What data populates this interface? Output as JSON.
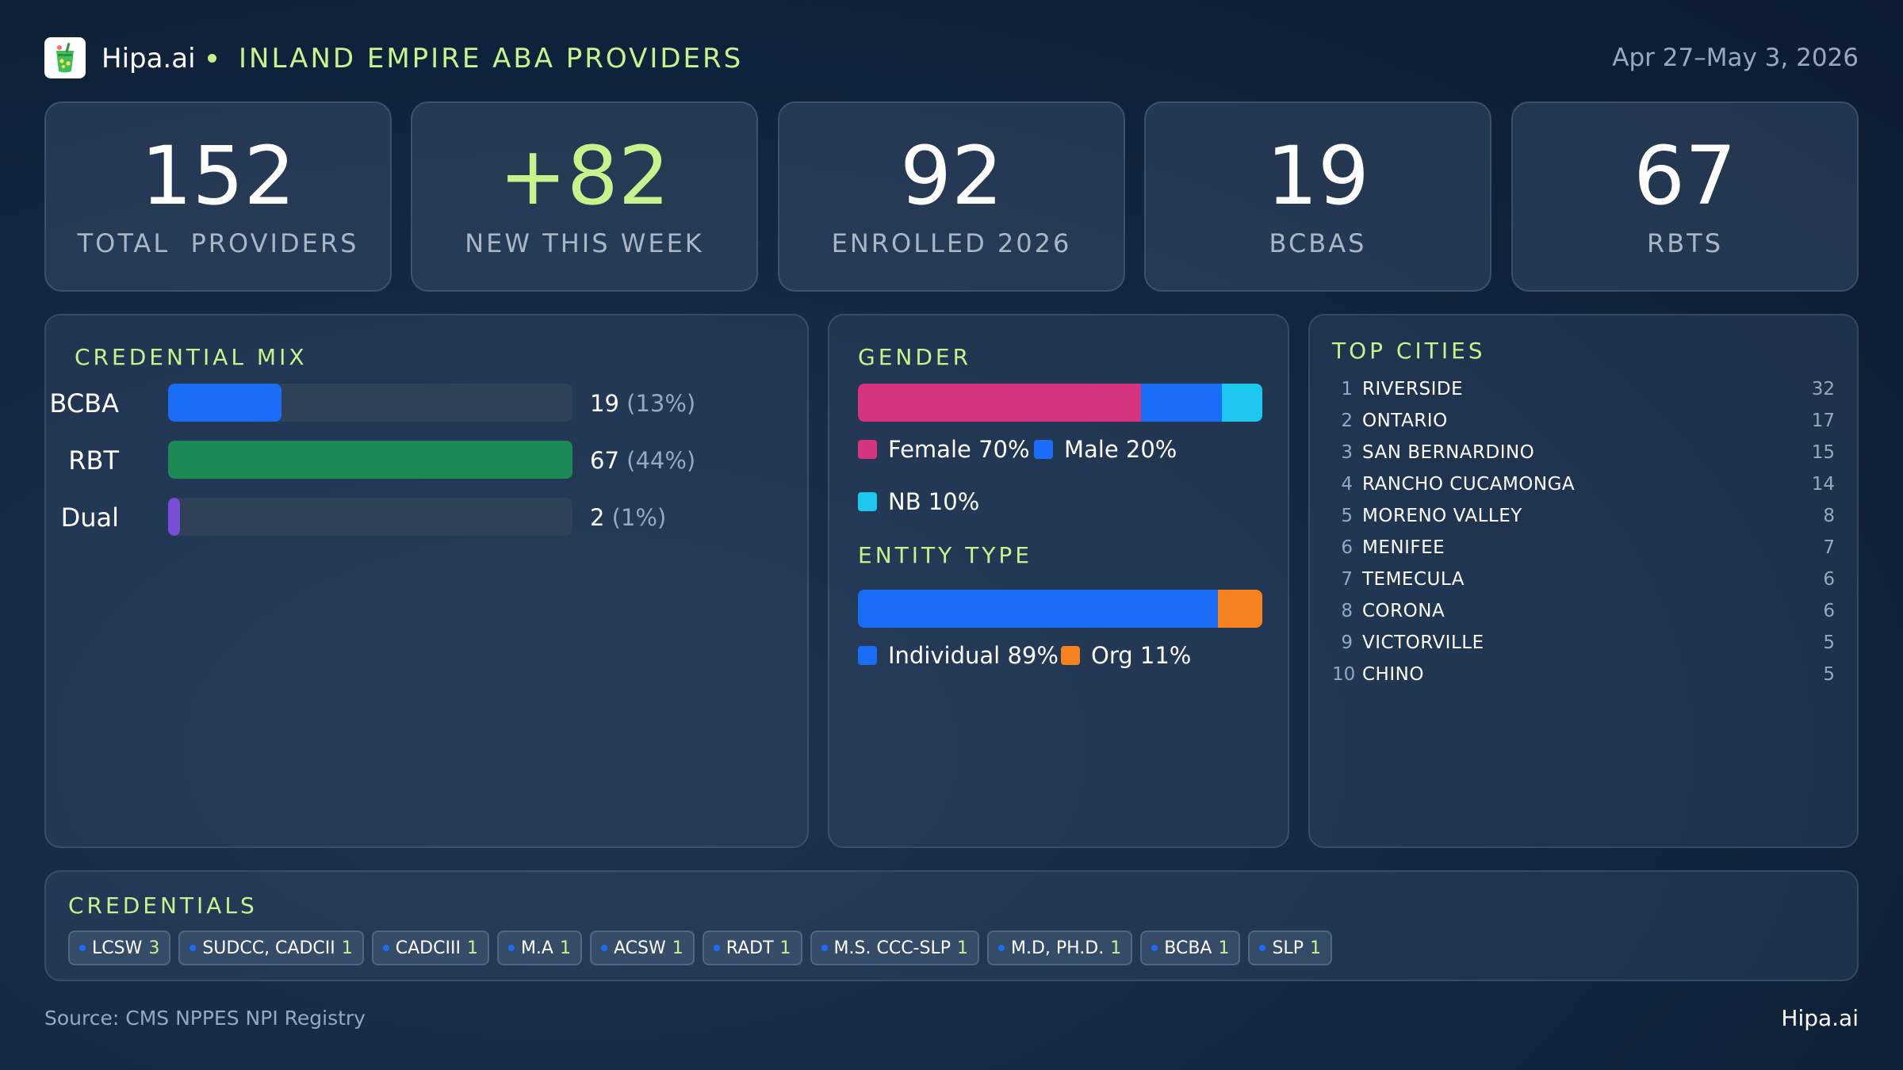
{
  "header": {
    "brand": "Hipa.ai",
    "title": "INLAND EMPIRE ABA PROVIDERS",
    "date_range": "Apr 27–May 3, 2026",
    "logo_icon": "green-cup-logo-icon"
  },
  "kpis": [
    {
      "value": "152",
      "label": "TOTAL  PROVIDERS",
      "accent": false
    },
    {
      "value": "+82",
      "label": "NEW THIS WEEK",
      "accent": true
    },
    {
      "value": "92",
      "label": "ENROLLED 2026",
      "accent": false
    },
    {
      "value": "19",
      "label": "BCBAS",
      "accent": false
    },
    {
      "value": "67",
      "label": "RBTS",
      "accent": false
    }
  ],
  "credential_mix": {
    "title": "CREDENTIAL MIX",
    "rows": [
      {
        "label": "BCBA",
        "count": "19",
        "pct": "(13%)",
        "fraction": 0.28,
        "color": "#1a6ef6"
      },
      {
        "label": "RBT",
        "count": "67",
        "pct": "(44%)",
        "fraction": 1.0,
        "color": "#1c8a57"
      },
      {
        "label": "Dual",
        "count": "2",
        "pct": "(1%)",
        "fraction": 0.03,
        "color": "#7a4fd6"
      }
    ]
  },
  "gender": {
    "title": "GENDER",
    "segments": [
      {
        "label": "Female 70%",
        "share": 70,
        "color": "#d6347f"
      },
      {
        "label": "Male 20%",
        "share": 20,
        "color": "#1a6ef6"
      },
      {
        "label": "NB 10%",
        "share": 10,
        "color": "#1cc8ee"
      }
    ]
  },
  "entity_type": {
    "title": "ENTITY TYPE",
    "segments": [
      {
        "label": "Individual 89%",
        "share": 89,
        "color": "#1a6ef6"
      },
      {
        "label": "Org 11%",
        "share": 11,
        "color": "#f5821f"
      }
    ]
  },
  "top_cities": {
    "title": "TOP CITIES",
    "rows": [
      {
        "rank": "1",
        "name": "RIVERSIDE",
        "count": "32"
      },
      {
        "rank": "2",
        "name": "ONTARIO",
        "count": "17"
      },
      {
        "rank": "3",
        "name": "SAN BERNARDINO",
        "count": "15"
      },
      {
        "rank": "4",
        "name": "RANCHO CUCAMONGA",
        "count": "14"
      },
      {
        "rank": "5",
        "name": "MORENO VALLEY",
        "count": "8"
      },
      {
        "rank": "6",
        "name": "MENIFEE",
        "count": "7"
      },
      {
        "rank": "7",
        "name": "TEMECULA",
        "count": "6"
      },
      {
        "rank": "8",
        "name": "CORONA",
        "count": "6"
      },
      {
        "rank": "9",
        "name": "VICTORVILLE",
        "count": "5"
      },
      {
        "rank": "10",
        "name": "CHINO",
        "count": "5"
      }
    ]
  },
  "credentials": {
    "title": "CREDENTIALS",
    "chips": [
      {
        "label": "LCSW",
        "count": "3"
      },
      {
        "label": "SUDCC, CADCII",
        "count": "1"
      },
      {
        "label": "CADCIII",
        "count": "1"
      },
      {
        "label": "M.A",
        "count": "1"
      },
      {
        "label": "ACSW",
        "count": "1"
      },
      {
        "label": "RADT",
        "count": "1"
      },
      {
        "label": "M.S. CCC-SLP",
        "count": "1"
      },
      {
        "label": "M.D, PH.D.",
        "count": "1"
      },
      {
        "label": "BCBA",
        "count": "1"
      },
      {
        "label": "SLP",
        "count": "1"
      }
    ]
  },
  "footer": {
    "source": "Source: CMS NPPES NPI Registry",
    "brand": "Hipa.ai"
  }
}
